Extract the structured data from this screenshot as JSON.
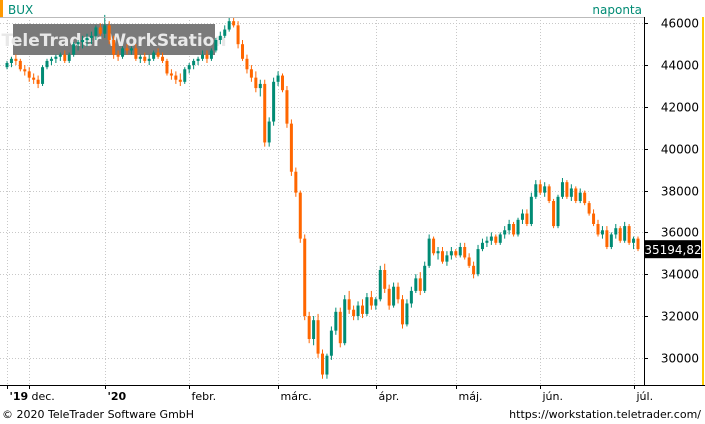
{
  "colors": {
    "up": "#008b74",
    "down": "#ff6600",
    "grid": "#c8c8c8",
    "symbol_marker": "#ff9900",
    "watermark_bg": "#7a7a7a",
    "accent_right": "#ffcc00",
    "price_box": "#000000"
  },
  "header": {
    "symbol": "BUX",
    "interval": "naponta"
  },
  "watermark": "TeleTrader WorkStation",
  "price_label": "35194,82",
  "footer": {
    "copyright": "© 2020 TeleTrader Software GmbH",
    "url": "https://workstation.teletrader.com/"
  },
  "chart_data": {
    "type": "candlestick",
    "y_axis": {
      "ylim": [
        28700,
        46300
      ],
      "ticks": [
        {
          "value": 46000,
          "label": "46000"
        },
        {
          "value": 44000,
          "label": "44000"
        },
        {
          "value": 42000,
          "label": "42000"
        },
        {
          "value": 40000,
          "label": "40000"
        },
        {
          "value": 38000,
          "label": "38000"
        },
        {
          "value": 36000,
          "label": "36000"
        },
        {
          "value": 34000,
          "label": "34000"
        },
        {
          "value": 32000,
          "label": "32000"
        },
        {
          "value": 30000,
          "label": "30000"
        }
      ]
    },
    "x_axis": {
      "labels": [
        {
          "label": "'19",
          "bold": true,
          "idx": 0
        },
        {
          "label": "dec.",
          "idx": 5
        },
        {
          "label": "'20",
          "bold": true,
          "idx": 22
        },
        {
          "label": "febr.",
          "idx": 41
        },
        {
          "label": "márc.",
          "idx": 61
        },
        {
          "label": "ápr.",
          "idx": 83
        },
        {
          "label": "máj.",
          "idx": 101
        },
        {
          "label": "jún.",
          "idx": 120
        },
        {
          "label": "júl.",
          "idx": 141
        }
      ]
    },
    "last_value": 35194.82,
    "candles": [
      [
        43900,
        44200,
        43800,
        44100
      ],
      [
        44100,
        44400,
        43900,
        44300
      ],
      [
        44300,
        44500,
        44000,
        44200
      ],
      [
        44200,
        44300,
        43700,
        43800
      ],
      [
        43800,
        44000,
        43500,
        43700
      ],
      [
        43700,
        43900,
        43200,
        43400
      ],
      [
        43400,
        43600,
        43100,
        43300
      ],
      [
        43300,
        43500,
        42900,
        43100
      ],
      [
        43100,
        44000,
        43000,
        43900
      ],
      [
        43900,
        44300,
        43800,
        44200
      ],
      [
        44200,
        44400,
        44000,
        44300
      ],
      [
        44300,
        44500,
        44100,
        44400
      ],
      [
        44400,
        44600,
        44200,
        44500
      ],
      [
        44500,
        44700,
        44100,
        44200
      ],
      [
        44200,
        44600,
        44100,
        44500
      ],
      [
        44500,
        45100,
        44400,
        45000
      ],
      [
        45000,
        45200,
        44700,
        45100
      ],
      [
        45100,
        45400,
        44800,
        45200
      ],
      [
        45200,
        45500,
        44900,
        45300
      ],
      [
        45300,
        45600,
        45000,
        45400
      ],
      [
        45400,
        45900,
        45200,
        45800
      ],
      [
        45800,
        46000,
        45400,
        45500
      ],
      [
        45500,
        46400,
        45300,
        45900
      ],
      [
        45900,
        46100,
        45000,
        45200
      ],
      [
        45200,
        45400,
        44300,
        44500
      ],
      [
        44500,
        44700,
        44200,
        44400
      ],
      [
        44400,
        44900,
        44300,
        44800
      ],
      [
        44800,
        45000,
        44500,
        44700
      ],
      [
        44700,
        44900,
        44500,
        44800
      ],
      [
        44800,
        45000,
        44200,
        44300
      ],
      [
        44300,
        44500,
        44100,
        44400
      ],
      [
        44400,
        44600,
        44100,
        44200
      ],
      [
        44200,
        44500,
        44000,
        44300
      ],
      [
        44300,
        44700,
        44200,
        44600
      ],
      [
        44600,
        44800,
        44300,
        44400
      ],
      [
        44400,
        44600,
        44100,
        44200
      ],
      [
        44200,
        44300,
        43500,
        43600
      ],
      [
        43600,
        43800,
        43300,
        43500
      ],
      [
        43500,
        43700,
        43100,
        43300
      ],
      [
        43300,
        43600,
        43000,
        43200
      ],
      [
        43200,
        43900,
        43100,
        43800
      ],
      [
        43800,
        44100,
        43600,
        44000
      ],
      [
        44000,
        44300,
        43800,
        44200
      ],
      [
        44200,
        44400,
        44000,
        44300
      ],
      [
        44300,
        44700,
        44200,
        44500
      ],
      [
        44500,
        44700,
        44100,
        44300
      ],
      [
        44300,
        44800,
        44200,
        44700
      ],
      [
        44700,
        45300,
        44600,
        45200
      ],
      [
        45200,
        45600,
        45000,
        45400
      ],
      [
        45400,
        45900,
        45300,
        45700
      ],
      [
        45700,
        46300,
        45600,
        46100
      ],
      [
        46100,
        46300,
        45800,
        45900
      ],
      [
        45900,
        46100,
        44800,
        45000
      ],
      [
        45000,
        45200,
        44200,
        44300
      ],
      [
        44300,
        44500,
        43600,
        43800
      ],
      [
        43800,
        44000,
        43200,
        43400
      ],
      [
        43400,
        43700,
        42700,
        42900
      ],
      [
        42900,
        43300,
        42500,
        43100
      ],
      [
        43100,
        43300,
        40100,
        40300
      ],
      [
        40300,
        41500,
        40100,
        41300
      ],
      [
        41300,
        43400,
        41100,
        43200
      ],
      [
        43200,
        43700,
        43000,
        43500
      ],
      [
        43500,
        43600,
        42700,
        42800
      ],
      [
        42800,
        43000,
        41000,
        41200
      ],
      [
        41200,
        41400,
        38700,
        38900
      ],
      [
        38900,
        39100,
        37700,
        37900
      ],
      [
        37900,
        38000,
        35500,
        35700
      ],
      [
        35700,
        35900,
        31800,
        32000
      ],
      [
        32000,
        32200,
        30700,
        30900
      ],
      [
        30900,
        32000,
        30600,
        31800
      ],
      [
        31800,
        32100,
        30000,
        30200
      ],
      [
        30200,
        30400,
        29000,
        29200
      ],
      [
        29200,
        30200,
        29000,
        30100
      ],
      [
        30100,
        31500,
        29900,
        31300
      ],
      [
        31300,
        32400,
        31100,
        32200
      ],
      [
        32200,
        32400,
        30500,
        30700
      ],
      [
        30700,
        33000,
        30600,
        32800
      ],
      [
        32800,
        33200,
        32100,
        32300
      ],
      [
        32300,
        32500,
        31800,
        32000
      ],
      [
        32000,
        32700,
        31800,
        32500
      ],
      [
        32500,
        32800,
        31900,
        32100
      ],
      [
        32100,
        33100,
        32000,
        32900
      ],
      [
        32900,
        33200,
        32300,
        32500
      ],
      [
        32500,
        32900,
        32300,
        32800
      ],
      [
        32800,
        34400,
        32700,
        34200
      ],
      [
        34200,
        34500,
        33100,
        33300
      ],
      [
        33300,
        33500,
        32300,
        32500
      ],
      [
        32500,
        33600,
        32400,
        33400
      ],
      [
        33400,
        33600,
        32600,
        32800
      ],
      [
        32800,
        33000,
        31400,
        31600
      ],
      [
        31600,
        32800,
        31500,
        32600
      ],
      [
        32600,
        33400,
        32400,
        33200
      ],
      [
        33200,
        34000,
        33100,
        33800
      ],
      [
        33800,
        34100,
        33000,
        33200
      ],
      [
        33200,
        34600,
        33100,
        34400
      ],
      [
        34400,
        35900,
        34300,
        35700
      ],
      [
        35700,
        35800,
        34900,
        35000
      ],
      [
        35000,
        35300,
        34700,
        35100
      ],
      [
        35100,
        35300,
        34500,
        34600
      ],
      [
        34600,
        35100,
        34400,
        34900
      ],
      [
        34900,
        35300,
        34700,
        35100
      ],
      [
        35100,
        35200,
        34800,
        34900
      ],
      [
        34900,
        35500,
        34800,
        35300
      ],
      [
        35300,
        35500,
        34700,
        34800
      ],
      [
        34800,
        35000,
        34300,
        34400
      ],
      [
        34400,
        34600,
        33800,
        34000
      ],
      [
        34000,
        35400,
        33900,
        35200
      ],
      [
        35200,
        35700,
        35100,
        35500
      ],
      [
        35500,
        35800,
        35300,
        35600
      ],
      [
        35600,
        36000,
        35400,
        35800
      ],
      [
        35800,
        35900,
        35400,
        35500
      ],
      [
        35500,
        36000,
        35400,
        35900
      ],
      [
        35900,
        36300,
        35700,
        36100
      ],
      [
        36100,
        36600,
        35900,
        36400
      ],
      [
        36400,
        36500,
        35800,
        35900
      ],
      [
        35900,
        36700,
        35800,
        36600
      ],
      [
        36600,
        37100,
        36400,
        36900
      ],
      [
        36900,
        37100,
        36300,
        36400
      ],
      [
        36400,
        37900,
        36300,
        37700
      ],
      [
        37700,
        38500,
        37600,
        38300
      ],
      [
        38300,
        38500,
        37800,
        37900
      ],
      [
        37900,
        38400,
        37700,
        38200
      ],
      [
        38200,
        38300,
        37400,
        37500
      ],
      [
        37500,
        37600,
        36200,
        36300
      ],
      [
        36300,
        37800,
        36200,
        37700
      ],
      [
        37700,
        38600,
        37600,
        38400
      ],
      [
        38400,
        38500,
        37600,
        37700
      ],
      [
        37700,
        38300,
        37500,
        38100
      ],
      [
        38100,
        38200,
        37400,
        37500
      ],
      [
        37500,
        38100,
        37400,
        37900
      ],
      [
        37900,
        38000,
        37300,
        37400
      ],
      [
        37400,
        37500,
        36800,
        36900
      ],
      [
        36900,
        37100,
        36300,
        36400
      ],
      [
        36400,
        36600,
        35800,
        35900
      ],
      [
        35900,
        36300,
        35700,
        36100
      ],
      [
        36100,
        36300,
        35200,
        35300
      ],
      [
        35300,
        36000,
        35200,
        35900
      ],
      [
        35900,
        36400,
        35700,
        36200
      ],
      [
        36200,
        36300,
        35500,
        35600
      ],
      [
        35600,
        36500,
        35500,
        36300
      ],
      [
        36300,
        36400,
        35400,
        35500
      ],
      [
        35500,
        35800,
        35200,
        35700
      ],
      [
        35700,
        35800,
        35100,
        35200
      ]
    ]
  }
}
